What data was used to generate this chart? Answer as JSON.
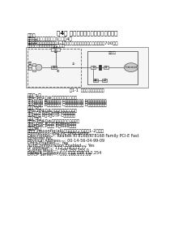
{
  "title": "第4章 网络管理员下午试题分析与解答",
  "background_color": "#ffffff",
  "line1": "试题一",
  "line2": "阅读以下说明，回答问题1至问题4。",
  "line3": "【说明】",
  "line4": "某校园网网络拓扑结构如图1-1所示，其中网络中心与楼宇距离超过700米，",
  "line5": "要求下线率实方于零，且可扩展。",
  "fig_caption": "图1-1  某校园网络拓扑结构图",
  "q1_header": "【问题1】",
  "q1_line1": "为图1-1中①～⑩空缺处选择合适交换，",
  "q1_line2": "①A、路由器 B、接入交换机 C、二层核心交换机 D、远程合用服务器",
  "q1_line3": "②A、路由器 B、接入交换机 C、二层核心交换机 D、处理合用服务器",
  "q1_line4": "③A、路由器 B、接入交换机 C、二层核心交换机 D、远程合用服务器",
  "q2_header": "【问题2】",
  "q2_line1": "为图1-1中④、⑤空缺处选择合适介质，",
  "q2_line2": "①A、光纤 B、5类UTP C、同轴电缆",
  "q2_line3": "②A、光纤 B、5类UTP C、同轴电缆",
  "q3_header": "【问题3】",
  "q3_line1": "为图1-1中⑥、⑦空缺处选择合适服务器，",
  "q3_line2": "①A、DHCP服务器 B、Web服务器",
  "q3_line3": "②A、DHCP服务器 B、Web服务器",
  "q4_header": "【问题4】",
  "q4_line1": "在判断行(ipconfig/all)命令后，显示结果如图1-2所示，",
  "q4_line2": "Connection-specific DNS Suffix:",
  "q4_line3": "Description---: Realtek RT8168/RT8168 Family PCI-E Fast",
  "q4_line4": "Ethernet NIC",
  "q4_line5": "Physical Address---: 00-14-56-04-99-09",
  "q4_line6": "Dhcp Enabled---: Yes",
  "q4_line7": "AutoConfiguration Enabled---: Yes",
  "q4_line8": "IP Address---: 112.119.112.77",
  "q4_line9": "Subnet Mask---: 255.255.255.0",
  "q4_line10": "Default Gateway---: 112.119.112.254",
  "q4_line11": "DHCP Server---: 192.168.251.18",
  "isp_label": "ISP接入",
  "left_label": "楼宇",
  "center_label": "网管中心"
}
